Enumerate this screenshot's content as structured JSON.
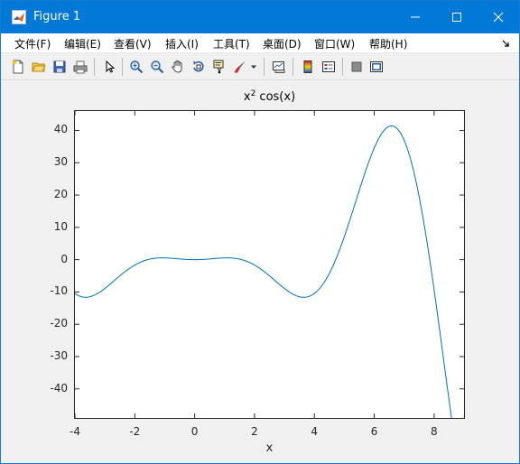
{
  "window": {
    "title": "Figure 1",
    "accent_color": "#0078d7"
  },
  "menu": [
    {
      "label": "文件(F)"
    },
    {
      "label": "编辑(E)"
    },
    {
      "label": "查看(V)"
    },
    {
      "label": "插入(I)"
    },
    {
      "label": "工具(T)"
    },
    {
      "label": "桌面(D)"
    },
    {
      "label": "窗口(W)"
    },
    {
      "label": "帮助(H)"
    }
  ],
  "toolbar": [
    {
      "icon": "new-figure-icon"
    },
    {
      "icon": "open-file-icon"
    },
    {
      "icon": "save-icon"
    },
    {
      "icon": "print-icon"
    },
    {
      "icon": "select-arrow-icon"
    },
    {
      "icon": "zoom-in-icon"
    },
    {
      "icon": "zoom-out-icon"
    },
    {
      "icon": "pan-hand-icon"
    },
    {
      "icon": "rotate-3d-icon"
    },
    {
      "icon": "data-cursor-icon"
    },
    {
      "icon": "brush-icon"
    },
    {
      "icon": "link-plot-icon"
    },
    {
      "icon": "colorbar-icon"
    },
    {
      "icon": "legend-icon"
    },
    {
      "icon": "hide-plot-tools-icon"
    },
    {
      "icon": "show-plot-tools-icon"
    }
  ],
  "chart_data": {
    "type": "line",
    "title_base": "x",
    "title_sup": "2",
    "title_rest": " cos(x)",
    "xlabel": "x",
    "ylabel": "",
    "function": "x^2 cos(x)",
    "xlim": [
      -4,
      9
    ],
    "ylim": [
      -49,
      46
    ],
    "xticks": [
      -4,
      -2,
      0,
      2,
      4,
      6,
      8
    ],
    "yticks": [
      40,
      30,
      20,
      10,
      0,
      -10,
      -20,
      -30,
      -40
    ],
    "x_range": [
      -4,
      8.6
    ],
    "line_color": "#0072bd",
    "grid": false
  }
}
